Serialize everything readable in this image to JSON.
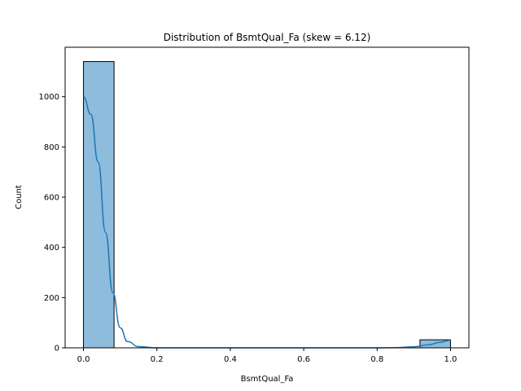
{
  "chart_data": {
    "type": "bar",
    "title": "Distribution of BsmtQual_Fa (skew = 6.12)",
    "xlabel": "BsmtQual_Fa",
    "ylabel": "Count",
    "xlim": [
      -0.05,
      1.05
    ],
    "ylim": [
      0,
      1197
    ],
    "x_ticks": [
      0.0,
      0.2,
      0.4,
      0.6,
      0.8,
      1.0
    ],
    "x_tick_labels": [
      "0.0",
      "0.2",
      "0.4",
      "0.6",
      "0.8",
      "1.0"
    ],
    "y_ticks": [
      0,
      200,
      400,
      600,
      800,
      1000
    ],
    "y_tick_labels": [
      "0",
      "200",
      "400",
      "600",
      "800",
      "1000"
    ],
    "bins": [
      {
        "x0": 0.0,
        "x1": 0.0833,
        "count": 1140
      },
      {
        "x0": 0.0833,
        "x1": 0.1667,
        "count": 0
      },
      {
        "x0": 0.1667,
        "x1": 0.25,
        "count": 0
      },
      {
        "x0": 0.25,
        "x1": 0.3333,
        "count": 0
      },
      {
        "x0": 0.3333,
        "x1": 0.4167,
        "count": 0
      },
      {
        "x0": 0.4167,
        "x1": 0.5,
        "count": 0
      },
      {
        "x0": 0.5,
        "x1": 0.5833,
        "count": 0
      },
      {
        "x0": 0.5833,
        "x1": 0.6667,
        "count": 0
      },
      {
        "x0": 0.6667,
        "x1": 0.75,
        "count": 0
      },
      {
        "x0": 0.75,
        "x1": 0.8333,
        "count": 0
      },
      {
        "x0": 0.8333,
        "x1": 0.9167,
        "count": 0
      },
      {
        "x0": 0.9167,
        "x1": 1.0,
        "count": 32
      }
    ],
    "kde": {
      "x": [
        0.0,
        0.02,
        0.04,
        0.06,
        0.08,
        0.1,
        0.12,
        0.15,
        0.2,
        0.3,
        0.5,
        0.7,
        0.8,
        0.85,
        0.9,
        0.94,
        0.97,
        1.0
      ],
      "y": [
        1000,
        930,
        740,
        460,
        220,
        80,
        25,
        5,
        0,
        0,
        0,
        0,
        0,
        1,
        4,
        12,
        22,
        30
      ]
    },
    "grid": false,
    "legend": "none",
    "colors": {
      "bar_fill": "#8ebcdc",
      "bar_edge": "#000000",
      "kde_line": "#1f77b4"
    }
  }
}
